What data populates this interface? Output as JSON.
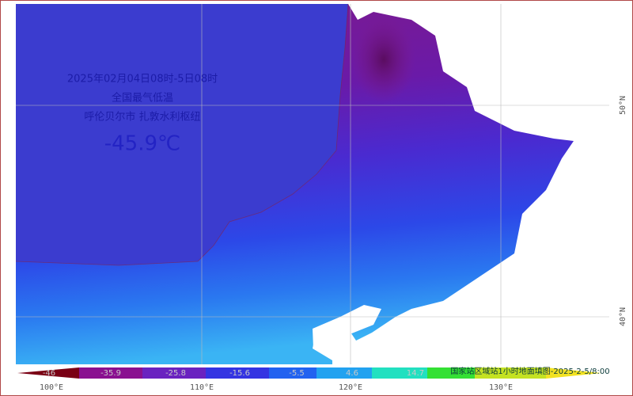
{
  "map": {
    "title_lines": [
      "2025年02月04日08时-5日08时",
      "全国最气低温",
      "呼伦贝尔市  扎敦水利枢纽"
    ],
    "min_temperature": "-45.9℃",
    "lon_labels": [
      "100°E",
      "110°E",
      "120°E",
      "130°E"
    ],
    "lat_labels": [
      "50°N",
      "40°N"
    ],
    "legend": {
      "labels": [
        "-46",
        "-35.9",
        "-25.8",
        "-15.6",
        "-5.5",
        "4.6",
        "14.7"
      ],
      "source": "国家站区域站1小时地面填图-2025-2-5/8:00"
    }
  }
}
